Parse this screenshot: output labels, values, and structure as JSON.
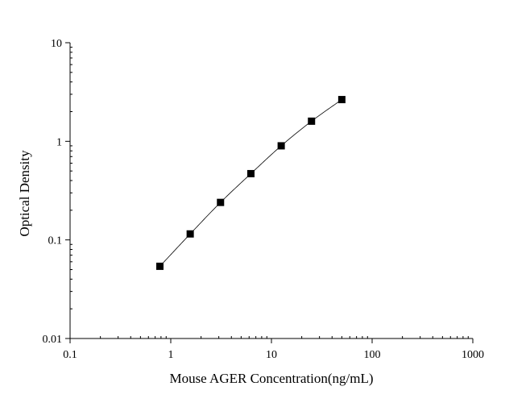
{
  "chart_data": {
    "type": "scatter",
    "title": "",
    "xlabel": "Mouse AGER Concentration(ng/mL)",
    "ylabel": "Optical Density",
    "x_scale": "log",
    "y_scale": "log",
    "xlim": [
      0.1,
      1000
    ],
    "ylim": [
      0.01,
      10
    ],
    "x_ticks": [
      {
        "value": 0.1,
        "label": "0.1"
      },
      {
        "value": 1,
        "label": "1"
      },
      {
        "value": 10,
        "label": "10"
      },
      {
        "value": 100,
        "label": "100"
      },
      {
        "value": 1000,
        "label": "1000"
      }
    ],
    "y_ticks": [
      {
        "value": 0.01,
        "label": "0.01"
      },
      {
        "value": 0.1,
        "label": "0.1"
      },
      {
        "value": 1,
        "label": "1"
      },
      {
        "value": 10,
        "label": "10"
      }
    ],
    "grid": false,
    "legend": "none",
    "series": [
      {
        "marker": "square",
        "color": "#000000",
        "fit_line": true,
        "points": [
          {
            "x": 0.78,
            "y": 0.054
          },
          {
            "x": 1.56,
            "y": 0.115
          },
          {
            "x": 3.12,
            "y": 0.24
          },
          {
            "x": 6.25,
            "y": 0.47
          },
          {
            "x": 12.5,
            "y": 0.9
          },
          {
            "x": 25,
            "y": 1.6
          },
          {
            "x": 50,
            "y": 2.65
          }
        ]
      }
    ]
  }
}
